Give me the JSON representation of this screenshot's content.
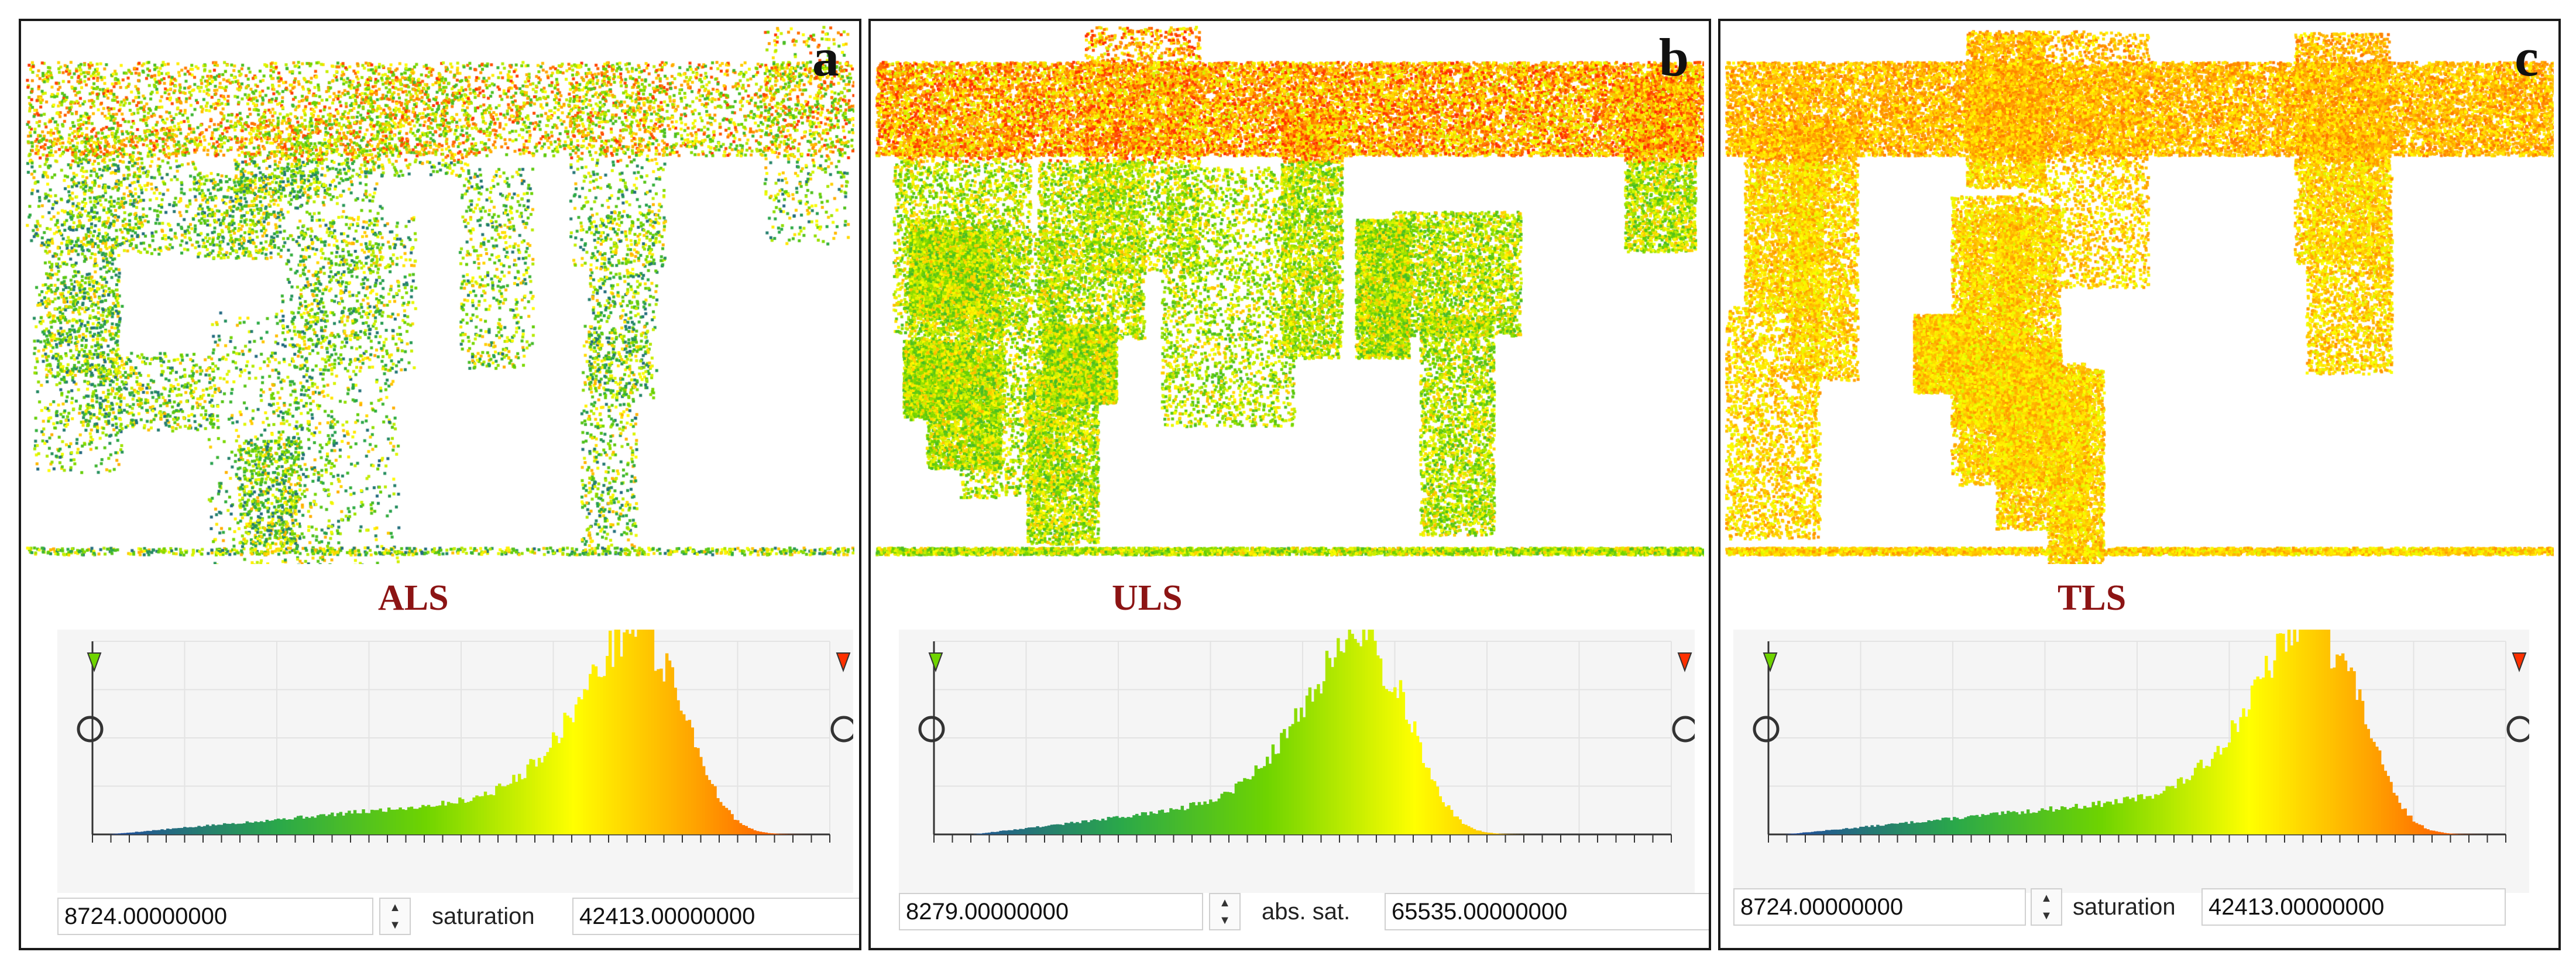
{
  "panels": [
    {
      "letter": "a",
      "method": "ALS",
      "min_value": "8724.00000000",
      "range_label": "saturation",
      "max_value": "42413.00000000"
    },
    {
      "letter": "b",
      "method": "ULS",
      "min_value": "8279.00000000",
      "range_label": "abs. sat.",
      "max_value": "65535.00000000"
    },
    {
      "letter": "c",
      "method": "TLS",
      "min_value": "8724.00000000",
      "range_label": "saturation",
      "max_value": "42413.00000000"
    }
  ],
  "colors": {
    "method_label": "#8c1414",
    "scale": [
      "#1f3fa8",
      "#2aa84a",
      "#6fd400",
      "#ffff00",
      "#ffa000",
      "#ff3000"
    ]
  },
  "icons": {
    "spinner_up": "▲",
    "spinner_down": "▼"
  }
}
